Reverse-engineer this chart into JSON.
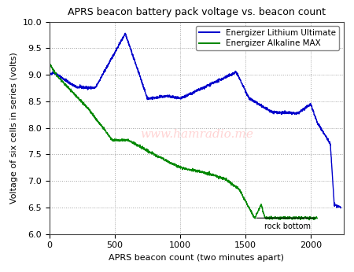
{
  "title": "APRS beacon battery pack voltage vs. beacon count",
  "xlabel": "APRS beacon count (two minutes apart)",
  "ylabel": "Voltage of six cells in series (volts)",
  "legend_lithium": "Energizer Lithium Ultimate",
  "legend_alkaline": "Energizer Alkaline MAX",
  "lithium_color": "#0000cc",
  "alkaline_color": "#008800",
  "annotation_text": "rock bottom",
  "xlim": [
    0,
    2250
  ],
  "ylim": [
    6.0,
    10.0
  ],
  "xticks": [
    0,
    500,
    1000,
    1500,
    2000
  ],
  "yticks": [
    6.0,
    6.5,
    7.0,
    7.5,
    8.0,
    8.5,
    9.0,
    9.5,
    10.0
  ],
  "watermark": "www.hamradio.me",
  "watermark_color": "#ffb0b0",
  "watermark_alpha": 0.55,
  "figsize": [
    4.5,
    3.46
  ],
  "dpi": 100
}
